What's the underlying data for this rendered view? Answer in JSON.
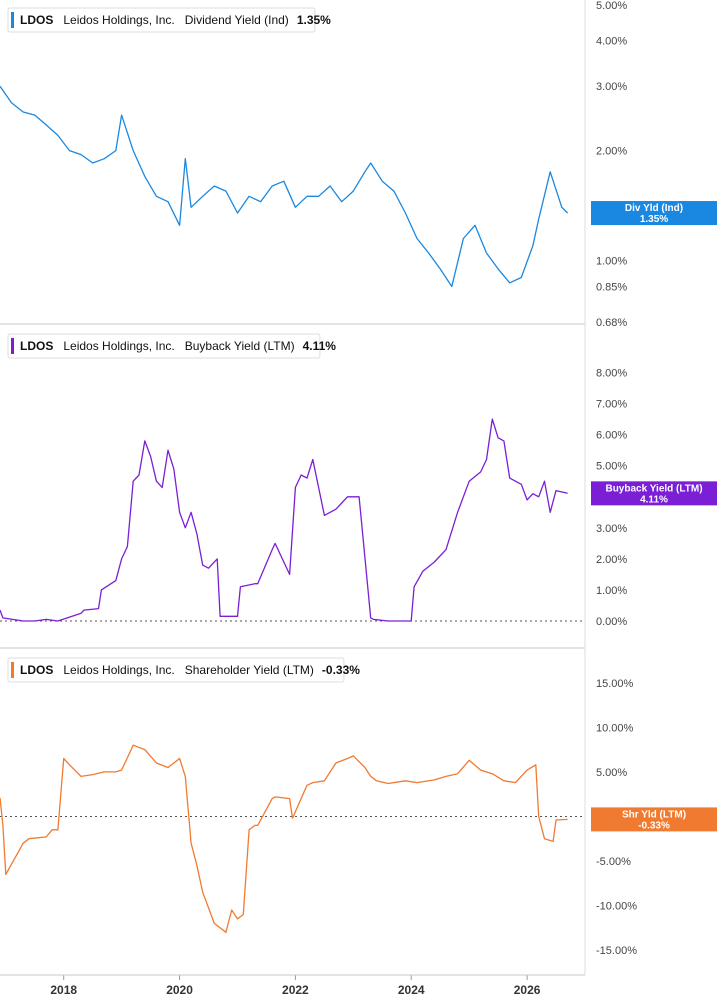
{
  "chart_data": [
    {
      "type": "line",
      "ticker": "LDOS",
      "company": "Leidos Holdings, Inc.",
      "metric": "Dividend Yield (Ind)",
      "current_value": "1.35%",
      "badge_line1": "Div Yld (Ind)",
      "badge_line2": "1.35%",
      "color": "#1a88e0",
      "scale": "log",
      "ylim": [
        0.68,
        5.0
      ],
      "yticks": [
        5.0,
        4.0,
        3.0,
        2.0,
        1.0,
        0.85,
        0.68
      ],
      "ytick_labels": [
        "5.00%",
        "4.00%",
        "3.00%",
        "2.00%",
        "1.00%",
        "0.85%",
        "0.68%"
      ],
      "x": [
        2016.9,
        2017.1,
        2017.3,
        2017.5,
        2017.7,
        2017.9,
        2018.1,
        2018.3,
        2018.5,
        2018.7,
        2018.9,
        2019.0,
        2019.2,
        2019.4,
        2019.6,
        2019.8,
        2020.0,
        2020.1,
        2020.2,
        2020.4,
        2020.6,
        2020.8,
        2021.0,
        2021.2,
        2021.4,
        2021.6,
        2021.8,
        2022.0,
        2022.2,
        2022.4,
        2022.6,
        2022.8,
        2023.0,
        2023.2,
        2023.3,
        2023.5,
        2023.7,
        2023.9,
        2024.1,
        2024.3,
        2024.5,
        2024.7,
        2024.9,
        2025.1,
        2025.3,
        2025.5,
        2025.7,
        2025.9,
        2026.1,
        2026.2,
        2026.4,
        2026.6,
        2026.7
      ],
      "values": [
        3.0,
        2.7,
        2.55,
        2.5,
        2.35,
        2.2,
        2.0,
        1.95,
        1.85,
        1.9,
        2.0,
        2.5,
        2.0,
        1.7,
        1.5,
        1.45,
        1.25,
        1.9,
        1.4,
        1.5,
        1.6,
        1.55,
        1.35,
        1.5,
        1.45,
        1.6,
        1.65,
        1.4,
        1.5,
        1.5,
        1.6,
        1.45,
        1.55,
        1.75,
        1.85,
        1.65,
        1.55,
        1.35,
        1.15,
        1.05,
        0.95,
        0.85,
        1.15,
        1.25,
        1.05,
        0.95,
        0.87,
        0.9,
        1.1,
        1.3,
        1.75,
        1.4,
        1.35
      ]
    },
    {
      "type": "line",
      "ticker": "LDOS",
      "company": "Leidos Holdings, Inc.",
      "metric": "Buyback Yield (LTM)",
      "current_value": "4.11%",
      "badge_line1": "Buyback Yield (LTM)",
      "badge_line2": "4.11%",
      "color": "#7a1fd6",
      "ylim": [
        0,
        8.5
      ],
      "yticks": [
        8,
        7,
        6,
        5,
        4,
        3,
        2,
        1,
        0
      ],
      "ytick_labels": [
        "8.00%",
        "7.00%",
        "6.00%",
        "5.00%",
        "4.00%",
        "3.00%",
        "2.00%",
        "1.00%",
        "0.00%"
      ],
      "x": [
        2016.9,
        2016.95,
        2017.3,
        2017.5,
        2017.7,
        2017.9,
        2018.3,
        2018.35,
        2018.6,
        2018.65,
        2018.9,
        2019.0,
        2019.1,
        2019.2,
        2019.3,
        2019.4,
        2019.5,
        2019.6,
        2019.7,
        2019.8,
        2019.9,
        2020.0,
        2020.1,
        2020.2,
        2020.3,
        2020.4,
        2020.5,
        2020.65,
        2020.7,
        2021.0,
        2021.05,
        2021.3,
        2021.35,
        2021.6,
        2021.65,
        2021.9,
        2022.0,
        2022.1,
        2022.2,
        2022.3,
        2022.5,
        2022.7,
        2022.8,
        2022.9,
        2023.0,
        2023.1,
        2023.3,
        2023.35,
        2023.6,
        2024.0,
        2024.05,
        2024.2,
        2024.4,
        2024.6,
        2024.8,
        2025.0,
        2025.2,
        2025.3,
        2025.4,
        2025.5,
        2025.6,
        2025.7,
        2025.9,
        2026.0,
        2026.1,
        2026.2,
        2026.3,
        2026.4,
        2026.5,
        2026.7
      ],
      "values": [
        0.35,
        0.1,
        0.0,
        0.0,
        0.05,
        0.0,
        0.25,
        0.35,
        0.4,
        1.0,
        1.3,
        2.0,
        2.4,
        4.5,
        4.7,
        5.8,
        5.3,
        4.5,
        4.3,
        5.5,
        4.9,
        3.5,
        3.0,
        3.5,
        2.8,
        1.8,
        1.7,
        2.0,
        0.15,
        0.15,
        1.1,
        1.2,
        1.2,
        2.3,
        2.5,
        1.5,
        4.3,
        4.7,
        4.6,
        5.2,
        3.4,
        3.6,
        3.8,
        4.0,
        4.0,
        4.0,
        0.1,
        0.05,
        0.0,
        0.0,
        1.1,
        1.6,
        1.9,
        2.3,
        3.5,
        4.5,
        4.8,
        5.2,
        6.5,
        5.9,
        5.8,
        4.6,
        4.4,
        3.9,
        4.1,
        4.0,
        4.5,
        3.5,
        4.2,
        4.11
      ]
    },
    {
      "type": "line",
      "ticker": "LDOS",
      "company": "Leidos Holdings, Inc.",
      "metric": "Shareholder Yield (LTM)",
      "current_value": "-0.33%",
      "badge_line1": "Shr Yld (LTM)",
      "badge_line2": "-0.33%",
      "color": "#f07a30",
      "ylim": [
        -16.0,
        17.0
      ],
      "yticks": [
        15,
        10,
        5,
        0,
        -5,
        -10,
        -15
      ],
      "ytick_labels": [
        "15.00%",
        "10.00%",
        "5.00%",
        "0.00%",
        "-5.00%",
        "-10.00%",
        "-15.00%"
      ],
      "x": [
        2016.9,
        2016.95,
        2017.0,
        2017.3,
        2017.4,
        2017.7,
        2017.8,
        2017.9,
        2018.0,
        2018.1,
        2018.3,
        2018.5,
        2018.7,
        2018.9,
        2019.0,
        2019.2,
        2019.4,
        2019.6,
        2019.8,
        2020.0,
        2020.1,
        2020.2,
        2020.3,
        2020.4,
        2020.6,
        2020.8,
        2020.9,
        2021.0,
        2021.1,
        2021.2,
        2021.3,
        2021.35,
        2021.6,
        2021.65,
        2021.9,
        2021.95,
        2022.2,
        2022.3,
        2022.5,
        2022.7,
        2022.9,
        2023.0,
        2023.2,
        2023.3,
        2023.4,
        2023.6,
        2023.9,
        2024.1,
        2024.4,
        2024.6,
        2024.8,
        2025.0,
        2025.2,
        2025.4,
        2025.6,
        2025.8,
        2026.0,
        2026.15,
        2026.2,
        2026.3,
        2026.45,
        2026.5,
        2026.7
      ],
      "values": [
        2.1,
        -1.0,
        -6.5,
        -3.0,
        -2.5,
        -2.3,
        -1.5,
        -1.5,
        6.5,
        5.8,
        4.5,
        4.7,
        5.0,
        5.0,
        5.2,
        8.0,
        7.5,
        6.0,
        5.5,
        6.5,
        4.5,
        -3.0,
        -5.5,
        -8.5,
        -12.0,
        -13.0,
        -10.5,
        -11.5,
        -11.0,
        -1.5,
        -1.0,
        -1.0,
        2.0,
        2.2,
        2.0,
        -0.2,
        3.5,
        3.8,
        4.0,
        6.0,
        6.5,
        6.8,
        5.5,
        4.5,
        4.0,
        3.7,
        4.0,
        3.8,
        4.1,
        4.5,
        4.8,
        6.3,
        5.2,
        4.8,
        4.0,
        3.8,
        5.2,
        5.8,
        0.0,
        -2.5,
        -2.8,
        -0.4,
        -0.33
      ]
    }
  ],
  "x_axis": {
    "xlim": [
      2016.9,
      2027.0
    ],
    "ticks": [
      2018,
      2020,
      2022,
      2024,
      2026
    ],
    "tick_labels": [
      "2018",
      "2020",
      "2022",
      "2024",
      "2026"
    ]
  }
}
